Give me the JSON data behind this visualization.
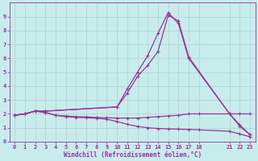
{
  "xlabel": "Windchill (Refroidissement éolien,°C)",
  "bg_color": "#c8ecec",
  "grid_color": "#b0d8d8",
  "line_color": "#993399",
  "xlim": [
    -0.5,
    23.5
  ],
  "ylim": [
    0,
    10
  ],
  "xticks": [
    0,
    1,
    2,
    3,
    4,
    5,
    6,
    7,
    8,
    9,
    10,
    11,
    12,
    13,
    14,
    15,
    16,
    17,
    18,
    21,
    22,
    23
  ],
  "yticks": [
    0,
    1,
    2,
    3,
    4,
    5,
    6,
    7,
    8,
    9
  ],
  "series1_x": [
    0,
    1,
    2,
    3,
    4,
    5,
    6,
    7,
    8,
    9,
    10,
    11,
    12,
    13,
    14,
    15,
    16,
    17,
    18,
    21,
    22,
    23
  ],
  "series1_y": [
    1.9,
    2.0,
    2.2,
    2.1,
    1.9,
    1.85,
    1.8,
    1.78,
    1.75,
    1.72,
    1.7,
    1.7,
    1.7,
    1.75,
    1.8,
    1.85,
    1.9,
    2.0,
    2.0,
    2.0,
    2.0,
    2.0
  ],
  "series2_x": [
    0,
    1,
    2,
    3,
    10,
    11,
    12,
    13,
    14,
    15,
    16,
    17,
    21,
    22,
    23
  ],
  "series2_y": [
    1.9,
    2.0,
    2.2,
    2.2,
    2.5,
    3.8,
    5.0,
    6.2,
    7.8,
    9.3,
    8.5,
    6.0,
    2.0,
    1.2,
    0.5
  ],
  "series3_x": [
    0,
    1,
    2,
    3,
    10,
    11,
    12,
    13,
    14,
    15,
    16,
    17,
    21,
    22,
    23
  ],
  "series3_y": [
    1.9,
    2.0,
    2.2,
    2.2,
    2.5,
    3.5,
    4.7,
    5.5,
    6.5,
    9.1,
    8.7,
    6.1,
    2.0,
    1.1,
    0.5
  ],
  "series4_x": [
    0,
    1,
    2,
    3,
    4,
    5,
    6,
    7,
    8,
    9,
    10,
    11,
    12,
    13,
    14,
    15,
    16,
    17,
    18,
    21,
    22,
    23
  ],
  "series4_y": [
    1.9,
    2.0,
    2.2,
    2.1,
    1.9,
    1.8,
    1.75,
    1.72,
    1.68,
    1.62,
    1.45,
    1.25,
    1.1,
    1.0,
    0.95,
    0.92,
    0.9,
    0.88,
    0.85,
    0.75,
    0.55,
    0.35
  ]
}
